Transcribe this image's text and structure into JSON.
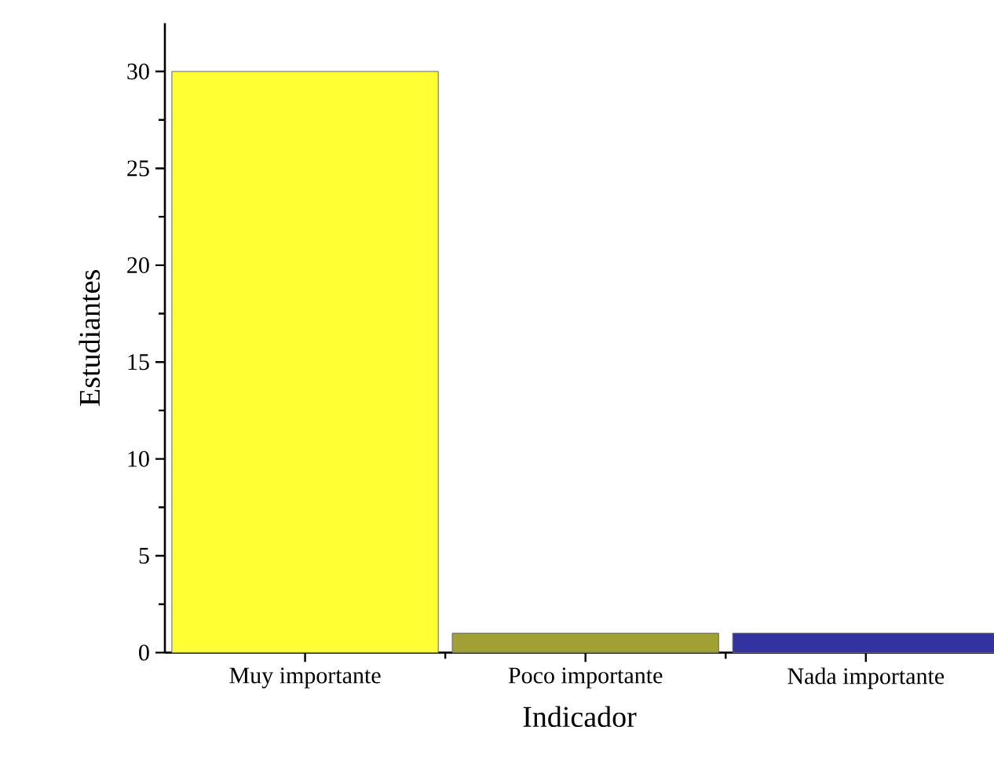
{
  "chart_data": {
    "type": "bar",
    "xlabel": "Indicador",
    "ylabel": "Estudiantes",
    "categories": [
      "Muy importante",
      "Poco importante",
      "Nada importante"
    ],
    "values": [
      30,
      1,
      1
    ],
    "colors": [
      "#ffff33",
      "#a0a036",
      "#3333a0"
    ],
    "ylim": [
      0,
      32.5
    ],
    "yticks": [
      0,
      5,
      10,
      15,
      20,
      25,
      30
    ],
    "grid": false
  }
}
